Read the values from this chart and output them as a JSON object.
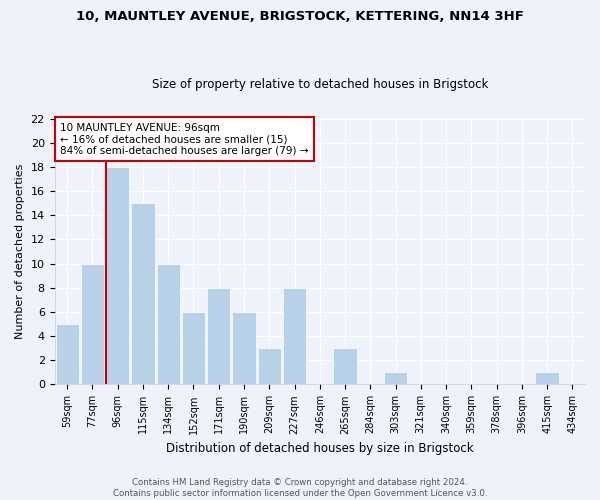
{
  "title1": "10, MAUNTLEY AVENUE, BRIGSTOCK, KETTERING, NN14 3HF",
  "title2": "Size of property relative to detached houses in Brigstock",
  "xlabel": "Distribution of detached houses by size in Brigstock",
  "ylabel": "Number of detached properties",
  "categories": [
    "59sqm",
    "77sqm",
    "96sqm",
    "115sqm",
    "134sqm",
    "152sqm",
    "171sqm",
    "190sqm",
    "209sqm",
    "227sqm",
    "246sqm",
    "265sqm",
    "284sqm",
    "303sqm",
    "321sqm",
    "340sqm",
    "359sqm",
    "378sqm",
    "396sqm",
    "415sqm",
    "434sqm"
  ],
  "values": [
    5,
    10,
    18,
    15,
    10,
    6,
    8,
    6,
    3,
    8,
    0,
    3,
    0,
    1,
    0,
    0,
    0,
    0,
    0,
    1,
    0
  ],
  "bar_color": "#b8d0e8",
  "bar_edge_color": "#b8d0e8",
  "subject_bar_index": 2,
  "vline_color": "#cc0000",
  "annotation_title": "10 MAUNTLEY AVENUE: 96sqm",
  "annotation_line1": "← 16% of detached houses are smaller (15)",
  "annotation_line2": "84% of semi-detached houses are larger (79) →",
  "annotation_box_color": "#cc0000",
  "ylim": [
    0,
    22
  ],
  "yticks": [
    0,
    2,
    4,
    6,
    8,
    10,
    12,
    14,
    16,
    18,
    20,
    22
  ],
  "footer1": "Contains HM Land Registry data © Crown copyright and database right 2024.",
  "footer2": "Contains public sector information licensed under the Open Government Licence v3.0.",
  "bg_color": "#eef2fa",
  "plot_bg_color": "#eef2fa",
  "grid_color": "#ffffff",
  "title1_fontsize": 9.5,
  "title2_fontsize": 8.5
}
